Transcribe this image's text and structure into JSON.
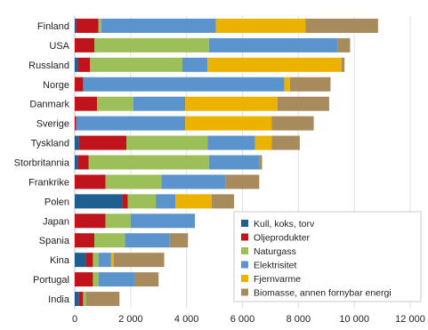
{
  "chart_data": {
    "type": "bar",
    "orientation": "horizontal",
    "stacked": true,
    "title": "",
    "xlabel": "",
    "ylabel": "",
    "xlim": [
      0,
      12000
    ],
    "x_ticks": [
      0,
      2000,
      4000,
      6000,
      8000,
      10000,
      12000
    ],
    "x_tick_labels": [
      "0",
      "2 000",
      "4 000",
      "6 000",
      "8 000",
      "10 000",
      "12 000"
    ],
    "grid": true,
    "legend_position": "bottom-right",
    "categories": [
      "Finland",
      "USA",
      "Russland",
      "Norge",
      "Danmark",
      "Sverige",
      "Tyskland",
      "Storbritannia",
      "Frankrike",
      "Polen",
      "Japan",
      "Spania",
      "Kina",
      "Portugal",
      "India"
    ],
    "series": [
      {
        "name": "Kull, koks, torv",
        "color": "#1f5f8f",
        "values": [
          50,
          0,
          100,
          0,
          0,
          0,
          150,
          100,
          0,
          1700,
          0,
          0,
          400,
          0,
          150
        ]
      },
      {
        "name": "Oljeprodukter",
        "color": "#c0141c",
        "values": [
          800,
          700,
          450,
          300,
          800,
          50,
          1700,
          400,
          1100,
          200,
          1100,
          700,
          250,
          650,
          150
        ]
      },
      {
        "name": "Naturgass",
        "color": "#9dbf5a",
        "values": [
          100,
          4100,
          3300,
          0,
          1300,
          0,
          2900,
          4300,
          2000,
          1000,
          900,
          1100,
          200,
          200,
          100
        ]
      },
      {
        "name": "Elektrisitet",
        "color": "#5b93cc",
        "values": [
          4100,
          4600,
          900,
          7200,
          1850,
          3900,
          1700,
          1800,
          2300,
          700,
          2300,
          1600,
          450,
          1300,
          0
        ]
      },
      {
        "name": "Fjernvarme",
        "color": "#ecb200",
        "values": [
          3200,
          0,
          4800,
          200,
          3300,
          3100,
          600,
          0,
          0,
          1300,
          0,
          0,
          100,
          0,
          0
        ]
      },
      {
        "name": "Biomasse, annen fornybar energi",
        "color": "#a88b5c",
        "values": [
          2600,
          450,
          100,
          1450,
          1850,
          1500,
          1000,
          100,
          1200,
          800,
          0,
          650,
          1800,
          850,
          1200
        ]
      }
    ]
  }
}
